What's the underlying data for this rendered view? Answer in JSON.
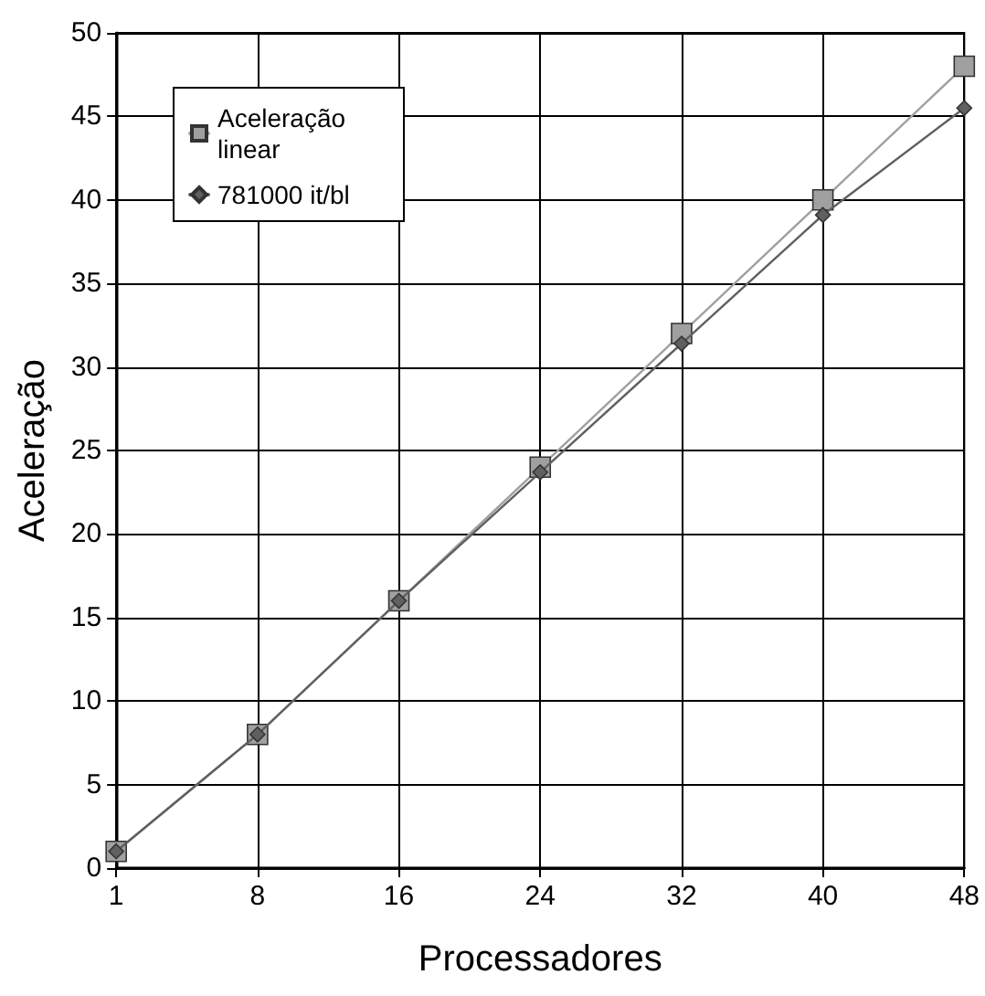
{
  "chart_data": {
    "type": "line",
    "xlabel": "Processadores",
    "ylabel": "Aceleração",
    "categories": [
      "1",
      "8",
      "16",
      "24",
      "32",
      "40",
      "48"
    ],
    "series": [
      {
        "name": "Aceleração linear",
        "color": "#a0a0a0",
        "marker": "square",
        "values": [
          1,
          8,
          16,
          24,
          32,
          40,
          48
        ]
      },
      {
        "name": "781000 it/bl",
        "color": "#606060",
        "marker": "diamond",
        "values": [
          1,
          8,
          16,
          23.7,
          31.4,
          39.1,
          45.5
        ]
      }
    ],
    "ylim": [
      0,
      50
    ],
    "yticks": [
      0,
      5,
      10,
      15,
      20,
      25,
      30,
      35,
      40,
      45,
      50
    ],
    "grid": true,
    "legend": "top left"
  }
}
